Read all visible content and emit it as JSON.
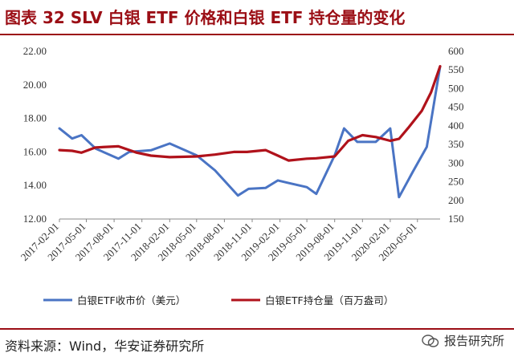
{
  "header": {
    "title": "图表 32 SLV 白银 ETF 价格和白银 ETF 持仓量的变化"
  },
  "footer": {
    "source": "资料来源：Wind，华安证券研究所",
    "watermark": "报告研究所"
  },
  "colors": {
    "accent": "#9b0e15",
    "price_series": "#4a74c4",
    "holdings_series": "#b0121b"
  },
  "chart_data": {
    "type": "line",
    "title": "",
    "x_tick_labels": [
      "2017-02-01",
      "2017-05-01",
      "2017-08-01",
      "2017-11-01",
      "2018-02-01",
      "2018-05-01",
      "2018-08-01",
      "2018-11-01",
      "2019-02-01",
      "2019-05-01",
      "2019-08-01",
      "2019-11-01",
      "2020-02-01",
      "2020-05-01"
    ],
    "y_left": {
      "ticks": [
        "12.00",
        "14.00",
        "16.00",
        "18.00",
        "20.00",
        "22.00"
      ],
      "range": [
        12,
        22
      ]
    },
    "y_right": {
      "ticks": [
        "150",
        "200",
        "250",
        "300",
        "350",
        "400",
        "450",
        "500",
        "550",
        "600"
      ],
      "range": [
        150,
        600
      ]
    },
    "grid": false,
    "legend_position": "bottom",
    "series": [
      {
        "name": "白银ETF收市价（美元）",
        "axis": "left",
        "x": [
          "2017-02-01",
          "2017-03-15",
          "2017-04-15",
          "2017-06-01",
          "2017-08-15",
          "2017-09-20",
          "2017-12-01",
          "2018-02-01",
          "2018-05-01",
          "2018-07-01",
          "2018-09-15",
          "2018-10-20",
          "2018-12-15",
          "2019-01-25",
          "2019-03-01",
          "2019-05-01",
          "2019-06-01",
          "2019-08-01",
          "2019-09-01",
          "2019-10-15",
          "2019-12-15",
          "2020-02-01",
          "2020-03-01",
          "2020-04-15",
          "2020-06-01",
          "2020-07-15"
        ],
        "values": [
          17.4,
          16.8,
          17.0,
          16.2,
          15.6,
          16.0,
          16.1,
          16.5,
          15.8,
          14.9,
          13.4,
          13.8,
          13.85,
          14.3,
          14.15,
          13.9,
          13.5,
          15.8,
          17.4,
          16.6,
          16.6,
          17.4,
          13.3,
          14.8,
          16.3,
          21.1
        ]
      },
      {
        "name": "白银ETF持仓量（百万盎司）",
        "axis": "right",
        "x": [
          "2017-02-01",
          "2017-03-15",
          "2017-04-15",
          "2017-06-01",
          "2017-08-15",
          "2017-10-15",
          "2017-12-01",
          "2018-02-01",
          "2018-05-01",
          "2018-07-01",
          "2018-09-01",
          "2018-10-15",
          "2018-12-15",
          "2019-01-25",
          "2019-03-01",
          "2019-05-01",
          "2019-06-01",
          "2019-08-01",
          "2019-09-15",
          "2019-11-01",
          "2019-12-15",
          "2020-02-01",
          "2020-03-01",
          "2020-04-01",
          "2020-05-15",
          "2020-06-15",
          "2020-07-15"
        ],
        "values": [
          335,
          333,
          328,
          342,
          345,
          328,
          320,
          316,
          318,
          323,
          330,
          330,
          335,
          320,
          307,
          312,
          313,
          318,
          360,
          375,
          370,
          360,
          365,
          395,
          440,
          490,
          560
        ]
      }
    ]
  }
}
